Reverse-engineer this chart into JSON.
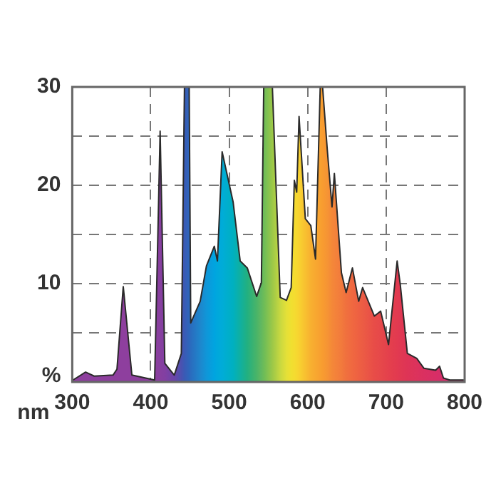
{
  "chart_data": {
    "type": "area",
    "xlabel": "nm",
    "ylabel": "%",
    "x": [
      301,
      317,
      328,
      352,
      357,
      365,
      376,
      405,
      412,
      418,
      430,
      439,
      443,
      449,
      451,
      463,
      471,
      481,
      485,
      491,
      505,
      514,
      523,
      535,
      541,
      544,
      555,
      565,
      573,
      579,
      583,
      586,
      589,
      597,
      604,
      610,
      616,
      619,
      625,
      631,
      634,
      643,
      649,
      657,
      665,
      670,
      685,
      693,
      703,
      714,
      718,
      727,
      739,
      748,
      763,
      768,
      773,
      781,
      799
    ],
    "series": [
      {
        "color": "#2a2a2a",
        "values": [
          0.2,
          1.0,
          0.6,
          0.7,
          1.3,
          9.7,
          0.7,
          0.2,
          25.5,
          1.9,
          0.7,
          2.9,
          30,
          30,
          6.0,
          8.2,
          11.8,
          13.8,
          12.3,
          23.4,
          18.3,
          12.3,
          11.6,
          8.7,
          10.1,
          30,
          30,
          8.6,
          8.3,
          9.6,
          20.5,
          19.3,
          27,
          16.6,
          15.9,
          12.5,
          30,
          30,
          23.6,
          17.8,
          21.2,
          11.1,
          9.1,
          11.6,
          8.2,
          9.6,
          6.7,
          7.2,
          3.8,
          12.3,
          9.9,
          2.9,
          2.4,
          1.4,
          1.2,
          1.6,
          0.4,
          0.2,
          0.2
        ],
        "colors": [
          "#8e3f9e",
          "#8e3f9e",
          "#8e3f9e",
          "#8e3f9e",
          "#8e3f9e",
          "#8e3f9e",
          "#8e3f9e",
          "#8c3f9e",
          "#873f9f",
          "#823fa2",
          "#6a45a8",
          "#4a52b0",
          "#3a5ab5",
          "#2e66bb",
          "#2a6cbe",
          "#1e86cc",
          "#1096d8",
          "#00a4e0",
          "#00a8dc",
          "#00acd8",
          "#00b0c0",
          "#10b0a0",
          "#22b080",
          "#4ab468",
          "#62b860",
          "#6cbc58",
          "#9cc848",
          "#c8d840",
          "#e4e038",
          "#f0e030",
          "#f4dc30",
          "#f6d830",
          "#f8d230",
          "#f8c030",
          "#f8b030",
          "#f8a830",
          "#f8a030",
          "#f89c30",
          "#f69434",
          "#f48838",
          "#f4843a",
          "#f27a3c",
          "#f0703e",
          "#f06840",
          "#ee6042",
          "#ec5c44",
          "#e84c48",
          "#e6484a",
          "#e4404c",
          "#e23a50",
          "#e03852",
          "#de3456",
          "#dc325c",
          "#da3060",
          "#d82e66",
          "#d62e68",
          "#d42e6a",
          "#d22e6c",
          "#d02e70"
        ]
      }
    ],
    "xlim": [
      300,
      800
    ],
    "xticks": [
      300,
      400,
      500,
      600,
      700,
      800
    ],
    "ylim": [
      0,
      30
    ],
    "yticks": [
      {
        "value": 0,
        "label": null
      },
      {
        "value": 5,
        "label": null
      },
      10,
      {
        "value": 15,
        "label": null
      },
      20,
      {
        "value": 25,
        "label": null
      },
      30
    ],
    "grid": true,
    "marker": "none",
    "line_style": "solid",
    "legend": false
  }
}
